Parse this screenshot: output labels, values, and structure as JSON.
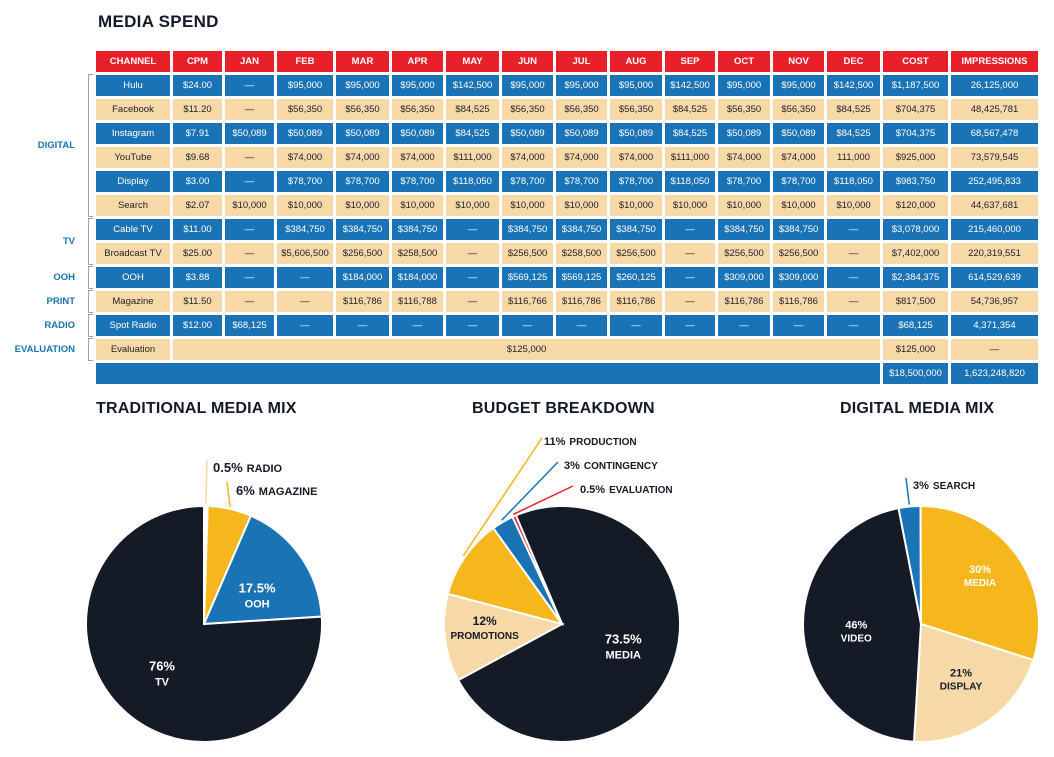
{
  "title": "MEDIA SPEND",
  "colors": {
    "header": "#e8202a",
    "blue": "#1a73b5",
    "tan": "#f7d9a8",
    "navy": "#141a26",
    "gold": "#f6b71c"
  },
  "table": {
    "columns": [
      "CHANNEL",
      "CPM",
      "JAN",
      "FEB",
      "MAR",
      "APR",
      "MAY",
      "JUN",
      "JUL",
      "AUG",
      "SEP",
      "OCT",
      "NOV",
      "DEC",
      "COST",
      "IMPRESSIONS"
    ],
    "groups": [
      {
        "label": "DIGITAL",
        "rows": [
          0,
          1,
          2,
          3,
          4,
          5
        ]
      },
      {
        "label": "TV",
        "rows": [
          6,
          7
        ]
      },
      {
        "label": "OOH",
        "rows": [
          8
        ]
      },
      {
        "label": "PRINT",
        "rows": [
          9
        ]
      },
      {
        "label": "RADIO",
        "rows": [
          10
        ]
      },
      {
        "label": "EVALUATION",
        "rows": [
          11
        ]
      }
    ],
    "rows": [
      {
        "style": "blue",
        "cells": [
          "Hulu",
          "$24.00",
          "—",
          "$95,000",
          "$95,000",
          "$95,000",
          "$142,500",
          "$95,000",
          "$95,000",
          "$95,000",
          "$142,500",
          "$95,000",
          "$95,000",
          "$142,500",
          "$1,187,500",
          "26,125,000"
        ]
      },
      {
        "style": "tan",
        "cells": [
          "Facebook",
          "$11.20",
          "—",
          "$56,350",
          "$56,350",
          "$56,350",
          "$84,525",
          "$56,350",
          "$56,350",
          "$56,350",
          "$84,525",
          "$56,350",
          "$56,350",
          "$84,525",
          "$704,375",
          "48,425,781"
        ]
      },
      {
        "style": "blue",
        "cells": [
          "Instagram",
          "$7.91",
          "$50,089",
          "$50,089",
          "$50,089",
          "$50,089",
          "$84,525",
          "$50,089",
          "$50,089",
          "$50,089",
          "$84,525",
          "$50,089",
          "$50,089",
          "$84,525",
          "$704,375",
          "68,567,478"
        ]
      },
      {
        "style": "tan",
        "cells": [
          "YouTube",
          "$9.68",
          "—",
          "$74,000",
          "$74,000",
          "$74,000",
          "$111,000",
          "$74,000",
          "$74,000",
          "$74,000",
          "$111,000",
          "$74,000",
          "$74,000",
          "111,000",
          "$925,000",
          "73,579,545"
        ]
      },
      {
        "style": "blue",
        "cells": [
          "Display",
          "$3.00",
          "—",
          "$78,700",
          "$78,700",
          "$78,700",
          "$118,050",
          "$78,700",
          "$78,700",
          "$78,700",
          "$118,050",
          "$78,700",
          "$78,700",
          "$118,050",
          "$983,750",
          "252,495,833"
        ]
      },
      {
        "style": "tan",
        "cells": [
          "Search",
          "$2.07",
          "$10,000",
          "$10,000",
          "$10,000",
          "$10,000",
          "$10,000",
          "$10,000",
          "$10,000",
          "$10,000",
          "$10,000",
          "$10,000",
          "$10,000",
          "$10,000",
          "$120,000",
          "44,637,681"
        ]
      },
      {
        "style": "blue",
        "cells": [
          "Cable TV",
          "$11.00",
          "—",
          "$384,750",
          "$384,750",
          "$384,750",
          "—",
          "$384,750",
          "$384,750",
          "$384,750",
          "—",
          "$384,750",
          "$384,750",
          "—",
          "$3,078,000",
          "215,460,000"
        ]
      },
      {
        "style": "tan",
        "cells": [
          "Broadcast TV",
          "$25.00",
          "—",
          "$5,606,500",
          "$256,500",
          "$258,500",
          "—",
          "$256,500",
          "$258,500",
          "$256,500",
          "—",
          "$256,500",
          "$256,500",
          "—",
          "$7,402,000",
          "220,319,551"
        ]
      },
      {
        "style": "blue",
        "cells": [
          "OOH",
          "$3.88",
          "—",
          "—",
          "$184,000",
          "$184,000",
          "—",
          "$569,125",
          "$569,125",
          "$260,125",
          "—",
          "$309,000",
          "$309,000",
          "—",
          "$2,384,375",
          "614,529,639"
        ]
      },
      {
        "style": "tan",
        "cells": [
          "Magazine",
          "$11.50",
          "—",
          "—",
          "$116,786",
          "$116,788",
          "—",
          "$116,766",
          "$116,786",
          "$116,786",
          "—",
          "$116,786",
          "$116,786",
          "—",
          "$817,500",
          "54,736,957"
        ]
      },
      {
        "style": "blue",
        "cells": [
          "Spot Radio",
          "$12.00",
          "$68,125",
          "—",
          "—",
          "—",
          "—",
          "—",
          "—",
          "—",
          "—",
          "—",
          "—",
          "—",
          "$68,125",
          "4,371,354"
        ]
      }
    ],
    "evaluation": {
      "channel": "Evaluation",
      "amount": "$125,000",
      "cost": "$125,000",
      "impressions": "—"
    },
    "totals": {
      "cost": "$18,500,000",
      "impressions": "1,623,248,820"
    }
  },
  "chart_data": [
    {
      "type": "pie",
      "title": "TRADITIONAL MEDIA MIX",
      "slices": [
        {
          "pct": "0.5%",
          "name": "RADIO",
          "value": 0.5,
          "color": "#ffffff"
        },
        {
          "pct": "6%",
          "name": "MAGAZINE",
          "value": 6,
          "color": "#f6b71c"
        },
        {
          "pct": "17.5%",
          "name": "OOH",
          "value": 17.5,
          "color": "#1a73b5"
        },
        {
          "pct": "76%",
          "name": "TV",
          "value": 76,
          "color": "#141a26"
        }
      ]
    },
    {
      "type": "pie",
      "title": "BUDGET BREAKDOWN",
      "slices": [
        {
          "pct": "73.5%",
          "name": "MEDIA",
          "value": 73.5,
          "color": "#141a26"
        },
        {
          "pct": "12%",
          "name": "PROMOTIONS",
          "value": 12,
          "color": "#f7d9a8"
        },
        {
          "pct": "11%",
          "name": "PRODUCTION",
          "value": 11,
          "color": "#f6b71c"
        },
        {
          "pct": "3%",
          "name": "CONTINGENCY",
          "value": 3,
          "color": "#1a73b5"
        },
        {
          "pct": "0.5%",
          "name": "EVALUATION",
          "value": 0.5,
          "color": "#e8202a"
        }
      ]
    },
    {
      "type": "pie",
      "title": "DIGITAL MEDIA MIX",
      "slices": [
        {
          "pct": "3%",
          "name": "SEARCH",
          "value": 3,
          "color": "#1a73b5"
        },
        {
          "pct": "30%",
          "name": "MEDIA",
          "value": 30,
          "color": "#f6b71c"
        },
        {
          "pct": "21%",
          "name": "DISPLAY",
          "value": 21,
          "color": "#f7d9a8"
        },
        {
          "pct": "46%",
          "name": "VIDEO",
          "value": 46,
          "color": "#141a26"
        }
      ]
    }
  ]
}
